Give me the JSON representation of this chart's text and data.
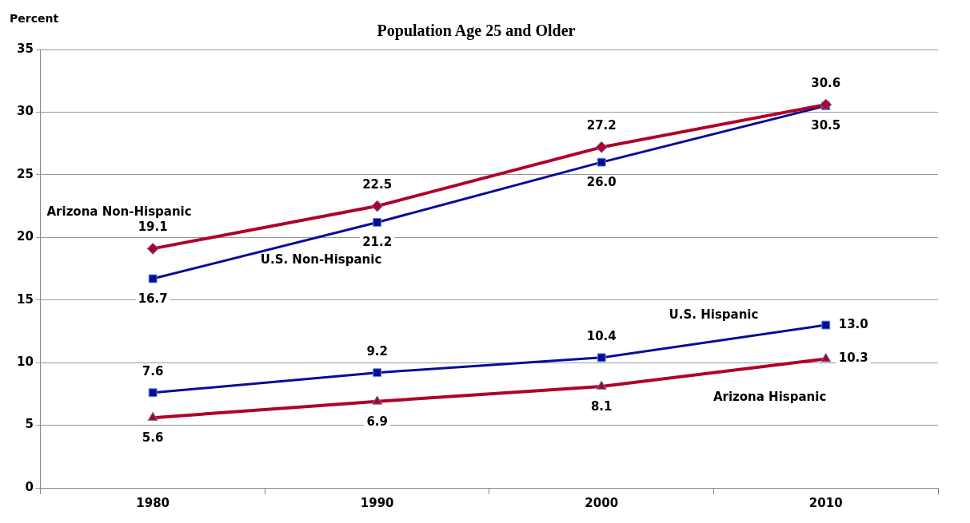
{
  "chart_data": {
    "type": "line",
    "title": "Population Age 25 and Older",
    "ylabel": "Percent",
    "categories": [
      "1980",
      "1990",
      "2000",
      "2010"
    ],
    "series": [
      {
        "name": "Arizona Non-Hispanic",
        "color": "#b0002a",
        "values": [
          19.1,
          22.5,
          27.2,
          30.6
        ],
        "value_labels": [
          "19.1",
          "22.5",
          "27.2",
          "30.6"
        ],
        "marker": "diamond"
      },
      {
        "name": "U.S. Non-Hispanic",
        "color": "#0a0a9a",
        "values": [
          16.7,
          21.2,
          26.0,
          30.5
        ],
        "value_labels": [
          "16.7",
          "21.2",
          "26.0",
          "30.5"
        ],
        "marker": "square"
      },
      {
        "name": "U.S. Hispanic",
        "color": "#0a0a9a",
        "values": [
          7.6,
          9.2,
          10.4,
          13.0
        ],
        "value_labels": [
          "7.6",
          "9.2",
          "10.4",
          "13.0"
        ],
        "marker": "square"
      },
      {
        "name": "Arizona Hispanic",
        "color": "#b0002a",
        "values": [
          5.6,
          6.9,
          8.1,
          10.3
        ],
        "value_labels": [
          "5.6",
          "6.9",
          "8.1",
          "10.3"
        ],
        "marker": "triangle"
      }
    ],
    "ylim": [
      0,
      35
    ],
    "yticks": [
      0,
      5,
      10,
      15,
      20,
      25,
      30,
      35
    ],
    "grid": "y",
    "legend": false
  }
}
